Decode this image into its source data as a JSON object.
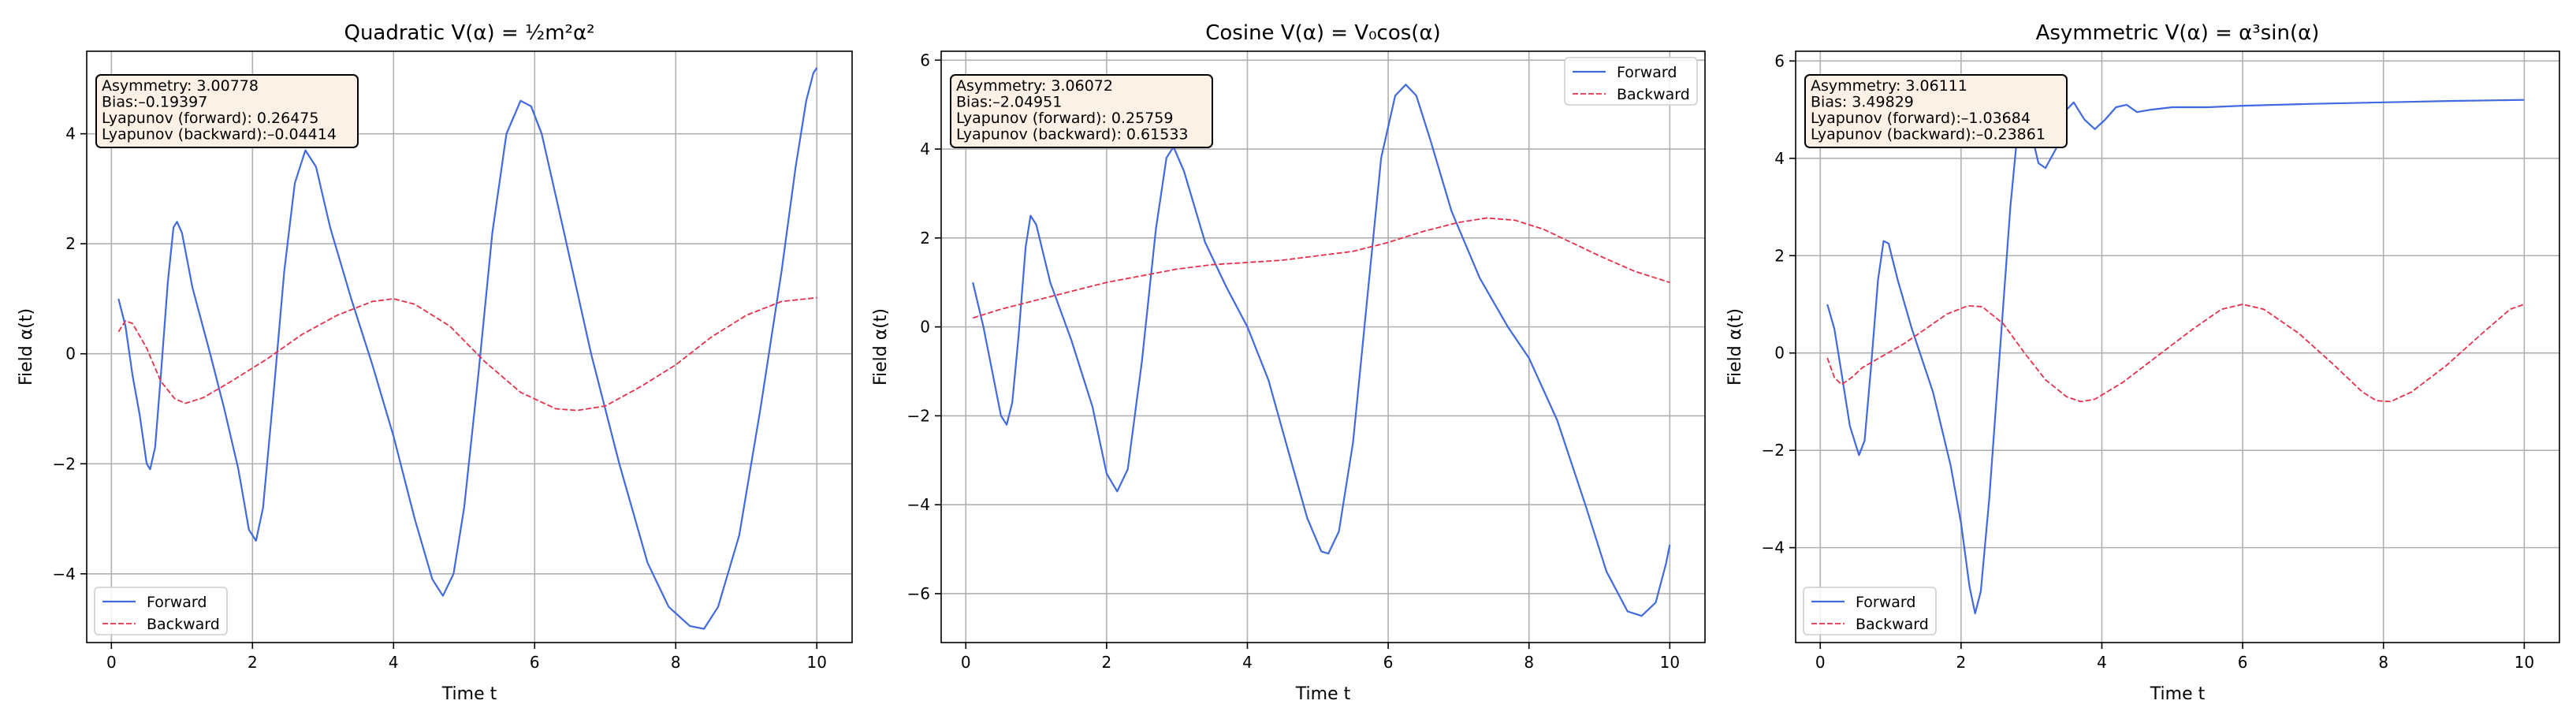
{
  "figure": {
    "background": "#ffffff"
  },
  "colors": {
    "forward": "#4169e1",
    "backward": "#e8304a",
    "grid": "#b0b0b0",
    "info_bg": "#fdf0e4"
  },
  "chart_data": [
    {
      "type": "line",
      "title": "Quadratic V(α) = ½m²α²",
      "xlabel": "Time t",
      "ylabel": "Field α(t)",
      "xlim": [
        -0.35,
        10.5
      ],
      "ylim": [
        -5.25,
        5.5
      ],
      "xticks": [
        0,
        2,
        4,
        6,
        8,
        10
      ],
      "yticks": [
        -4,
        -2,
        0,
        2,
        4
      ],
      "grid": true,
      "legend": {
        "placement": "lower-left",
        "entries": [
          "Forward",
          "Backward"
        ]
      },
      "info_box": {
        "placement": "upper-left",
        "lines": [
          "Asymmetry: 3.00778",
          "Bias:–0.19397",
          "Lyapunov (forward): 0.26475",
          "Lyapunov (backward):–0.04414"
        ]
      },
      "series": [
        {
          "name": "Forward",
          "style": "solid",
          "color": "#4169e1",
          "points": [
            [
              0.1,
              1.0
            ],
            [
              0.2,
              0.5
            ],
            [
              0.3,
              -0.4
            ],
            [
              0.4,
              -1.1
            ],
            [
              0.5,
              -2.0
            ],
            [
              0.55,
              -2.1
            ],
            [
              0.62,
              -1.7
            ],
            [
              0.7,
              -0.4
            ],
            [
              0.8,
              1.3
            ],
            [
              0.88,
              2.3
            ],
            [
              0.93,
              2.4
            ],
            [
              1.0,
              2.2
            ],
            [
              1.15,
              1.2
            ],
            [
              1.4,
              0.0
            ],
            [
              1.6,
              -1.0
            ],
            [
              1.8,
              -2.1
            ],
            [
              1.95,
              -3.2
            ],
            [
              2.05,
              -3.4
            ],
            [
              2.15,
              -2.8
            ],
            [
              2.3,
              -0.7
            ],
            [
              2.45,
              1.5
            ],
            [
              2.6,
              3.1
            ],
            [
              2.75,
              3.7
            ],
            [
              2.9,
              3.4
            ],
            [
              3.1,
              2.3
            ],
            [
              3.4,
              1.0
            ],
            [
              3.7,
              -0.2
            ],
            [
              4.0,
              -1.5
            ],
            [
              4.3,
              -3.0
            ],
            [
              4.55,
              -4.1
            ],
            [
              4.7,
              -4.4
            ],
            [
              4.85,
              -4.0
            ],
            [
              5.0,
              -2.8
            ],
            [
              5.2,
              -0.4
            ],
            [
              5.4,
              2.2
            ],
            [
              5.6,
              4.0
            ],
            [
              5.8,
              4.6
            ],
            [
              5.95,
              4.5
            ],
            [
              6.1,
              4.0
            ],
            [
              6.4,
              2.3
            ],
            [
              6.8,
              0.0
            ],
            [
              7.2,
              -2.0
            ],
            [
              7.6,
              -3.8
            ],
            [
              7.9,
              -4.6
            ],
            [
              8.2,
              -4.95
            ],
            [
              8.4,
              -5.0
            ],
            [
              8.6,
              -4.6
            ],
            [
              8.9,
              -3.3
            ],
            [
              9.2,
              -1.0
            ],
            [
              9.5,
              1.5
            ],
            [
              9.7,
              3.4
            ],
            [
              9.85,
              4.6
            ],
            [
              9.95,
              5.1
            ],
            [
              10.0,
              5.2
            ]
          ]
        },
        {
          "name": "Backward",
          "style": "dashed",
          "color": "#e8304a",
          "points": [
            [
              0.1,
              0.4
            ],
            [
              0.2,
              0.6
            ],
            [
              0.3,
              0.55
            ],
            [
              0.5,
              0.1
            ],
            [
              0.7,
              -0.5
            ],
            [
              0.9,
              -0.82
            ],
            [
              1.05,
              -0.9
            ],
            [
              1.3,
              -0.8
            ],
            [
              1.7,
              -0.5
            ],
            [
              2.2,
              -0.1
            ],
            [
              2.7,
              0.35
            ],
            [
              3.2,
              0.7
            ],
            [
              3.7,
              0.95
            ],
            [
              4.0,
              1.0
            ],
            [
              4.3,
              0.9
            ],
            [
              4.8,
              0.5
            ],
            [
              5.3,
              -0.15
            ],
            [
              5.8,
              -0.7
            ],
            [
              6.3,
              -1.0
            ],
            [
              6.6,
              -1.03
            ],
            [
              7.0,
              -0.95
            ],
            [
              7.5,
              -0.6
            ],
            [
              8.0,
              -0.2
            ],
            [
              8.5,
              0.3
            ],
            [
              9.0,
              0.7
            ],
            [
              9.5,
              0.95
            ],
            [
              10.0,
              1.02
            ]
          ]
        }
      ]
    },
    {
      "type": "line",
      "title": "Cosine V(α) = V₀cos(α)",
      "xlabel": "Time t",
      "ylabel": "Field α(t)",
      "xlim": [
        -0.35,
        10.5
      ],
      "ylim": [
        -7.1,
        6.2
      ],
      "xticks": [
        0,
        2,
        4,
        6,
        8,
        10
      ],
      "yticks": [
        -6,
        -4,
        -2,
        0,
        2,
        4,
        6
      ],
      "grid": true,
      "legend": {
        "placement": "upper-right",
        "entries": [
          "Forward",
          "Backward"
        ]
      },
      "info_box": {
        "placement": "upper-left",
        "lines": [
          "Asymmetry: 3.06072",
          "Bias:–2.04951",
          "Lyapunov (forward): 0.25759",
          "Lyapunov (backward): 0.61533"
        ]
      },
      "series": [
        {
          "name": "Forward",
          "style": "solid",
          "color": "#4169e1",
          "points": [
            [
              0.1,
              1.0
            ],
            [
              0.25,
              0.0
            ],
            [
              0.4,
              -1.2
            ],
            [
              0.5,
              -2.0
            ],
            [
              0.58,
              -2.2
            ],
            [
              0.66,
              -1.7
            ],
            [
              0.75,
              -0.2
            ],
            [
              0.85,
              1.8
            ],
            [
              0.92,
              2.5
            ],
            [
              1.0,
              2.3
            ],
            [
              1.2,
              1.0
            ],
            [
              1.5,
              -0.3
            ],
            [
              1.8,
              -1.8
            ],
            [
              2.0,
              -3.3
            ],
            [
              2.15,
              -3.7
            ],
            [
              2.3,
              -3.2
            ],
            [
              2.5,
              -0.8
            ],
            [
              2.7,
              2.2
            ],
            [
              2.85,
              3.8
            ],
            [
              2.95,
              4.05
            ],
            [
              3.1,
              3.5
            ],
            [
              3.4,
              1.9
            ],
            [
              3.7,
              0.9
            ],
            [
              4.0,
              0.0
            ],
            [
              4.3,
              -1.2
            ],
            [
              4.6,
              -2.9
            ],
            [
              4.85,
              -4.3
            ],
            [
              5.05,
              -5.05
            ],
            [
              5.15,
              -5.1
            ],
            [
              5.3,
              -4.6
            ],
            [
              5.5,
              -2.6
            ],
            [
              5.7,
              0.6
            ],
            [
              5.9,
              3.8
            ],
            [
              6.1,
              5.2
            ],
            [
              6.25,
              5.45
            ],
            [
              6.4,
              5.2
            ],
            [
              6.6,
              4.2
            ],
            [
              6.9,
              2.6
            ],
            [
              7.3,
              1.1
            ],
            [
              7.7,
              0.0
            ],
            [
              8.0,
              -0.7
            ],
            [
              8.4,
              -2.1
            ],
            [
              8.8,
              -4.0
            ],
            [
              9.1,
              -5.5
            ],
            [
              9.4,
              -6.4
            ],
            [
              9.6,
              -6.5
            ],
            [
              9.8,
              -6.2
            ],
            [
              9.95,
              -5.3
            ],
            [
              10.0,
              -4.9
            ]
          ]
        },
        {
          "name": "Backward",
          "style": "dashed",
          "color": "#e8304a",
          "points": [
            [
              0.1,
              0.2
            ],
            [
              0.5,
              0.4
            ],
            [
              1.0,
              0.6
            ],
            [
              1.5,
              0.8
            ],
            [
              2.0,
              1.0
            ],
            [
              2.5,
              1.15
            ],
            [
              3.0,
              1.3
            ],
            [
              3.5,
              1.4
            ],
            [
              4.0,
              1.45
            ],
            [
              4.5,
              1.5
            ],
            [
              5.0,
              1.6
            ],
            [
              5.5,
              1.7
            ],
            [
              6.0,
              1.9
            ],
            [
              6.5,
              2.15
            ],
            [
              7.0,
              2.35
            ],
            [
              7.4,
              2.45
            ],
            [
              7.8,
              2.4
            ],
            [
              8.2,
              2.2
            ],
            [
              8.6,
              1.9
            ],
            [
              9.0,
              1.6
            ],
            [
              9.5,
              1.25
            ],
            [
              10.0,
              1.0
            ]
          ]
        }
      ]
    },
    {
      "type": "line",
      "title": "Asymmetric V(α) = α³sin(α)",
      "xlabel": "Time t",
      "ylabel": "Field α(t)",
      "xlim": [
        -0.35,
        10.5
      ],
      "ylim": [
        -5.95,
        6.2
      ],
      "xticks": [
        0,
        2,
        4,
        6,
        8,
        10
      ],
      "yticks": [
        -4,
        -2,
        0,
        2,
        4,
        6
      ],
      "grid": true,
      "legend": {
        "placement": "lower-left",
        "entries": [
          "Forward",
          "Backward"
        ]
      },
      "info_box": {
        "placement": "upper-left",
        "lines": [
          "Asymmetry: 3.06111",
          "Bias: 3.49829",
          "Lyapunov (forward):–1.03684",
          "Lyapunov (backward):–0.23861"
        ]
      },
      "series": [
        {
          "name": "Forward",
          "style": "solid",
          "color": "#4169e1",
          "points": [
            [
              0.1,
              1.0
            ],
            [
              0.2,
              0.5
            ],
            [
              0.3,
              -0.4
            ],
            [
              0.42,
              -1.5
            ],
            [
              0.55,
              -2.1
            ],
            [
              0.63,
              -1.8
            ],
            [
              0.72,
              -0.3
            ],
            [
              0.82,
              1.5
            ],
            [
              0.9,
              2.3
            ],
            [
              0.97,
              2.25
            ],
            [
              1.1,
              1.5
            ],
            [
              1.3,
              0.5
            ],
            [
              1.6,
              -0.8
            ],
            [
              1.85,
              -2.3
            ],
            [
              2.0,
              -3.5
            ],
            [
              2.12,
              -4.8
            ],
            [
              2.2,
              -5.35
            ],
            [
              2.28,
              -4.9
            ],
            [
              2.4,
              -3.0
            ],
            [
              2.55,
              0.0
            ],
            [
              2.7,
              3.0
            ],
            [
              2.8,
              4.5
            ],
            [
              2.9,
              5.3
            ],
            [
              3.0,
              4.5
            ],
            [
              3.1,
              3.9
            ],
            [
              3.2,
              3.8
            ],
            [
              3.35,
              4.2
            ],
            [
              3.5,
              5.0
            ],
            [
              3.6,
              5.15
            ],
            [
              3.75,
              4.8
            ],
            [
              3.9,
              4.6
            ],
            [
              4.05,
              4.8
            ],
            [
              4.2,
              5.05
            ],
            [
              4.35,
              5.1
            ],
            [
              4.5,
              4.95
            ],
            [
              4.7,
              5.0
            ],
            [
              5.0,
              5.05
            ],
            [
              5.5,
              5.05
            ],
            [
              6.0,
              5.08
            ],
            [
              7.0,
              5.12
            ],
            [
              8.0,
              5.15
            ],
            [
              9.0,
              5.18
            ],
            [
              10.0,
              5.2
            ]
          ]
        },
        {
          "name": "Backward",
          "style": "dashed",
          "color": "#e8304a",
          "points": [
            [
              0.1,
              -0.1
            ],
            [
              0.2,
              -0.5
            ],
            [
              0.3,
              -0.65
            ],
            [
              0.45,
              -0.5
            ],
            [
              0.6,
              -0.3
            ],
            [
              0.9,
              -0.05
            ],
            [
              1.2,
              0.2
            ],
            [
              1.5,
              0.5
            ],
            [
              1.8,
              0.8
            ],
            [
              2.1,
              0.97
            ],
            [
              2.3,
              0.95
            ],
            [
              2.6,
              0.6
            ],
            [
              2.9,
              0.0
            ],
            [
              3.2,
              -0.55
            ],
            [
              3.5,
              -0.9
            ],
            [
              3.7,
              -1.0
            ],
            [
              3.9,
              -0.95
            ],
            [
              4.3,
              -0.6
            ],
            [
              4.8,
              -0.05
            ],
            [
              5.3,
              0.5
            ],
            [
              5.7,
              0.9
            ],
            [
              6.0,
              1.0
            ],
            [
              6.3,
              0.9
            ],
            [
              6.8,
              0.4
            ],
            [
              7.3,
              -0.25
            ],
            [
              7.7,
              -0.8
            ],
            [
              7.9,
              -0.98
            ],
            [
              8.1,
              -1.0
            ],
            [
              8.4,
              -0.8
            ],
            [
              8.9,
              -0.25
            ],
            [
              9.4,
              0.4
            ],
            [
              9.8,
              0.9
            ],
            [
              10.0,
              1.0
            ]
          ]
        }
      ]
    }
  ]
}
